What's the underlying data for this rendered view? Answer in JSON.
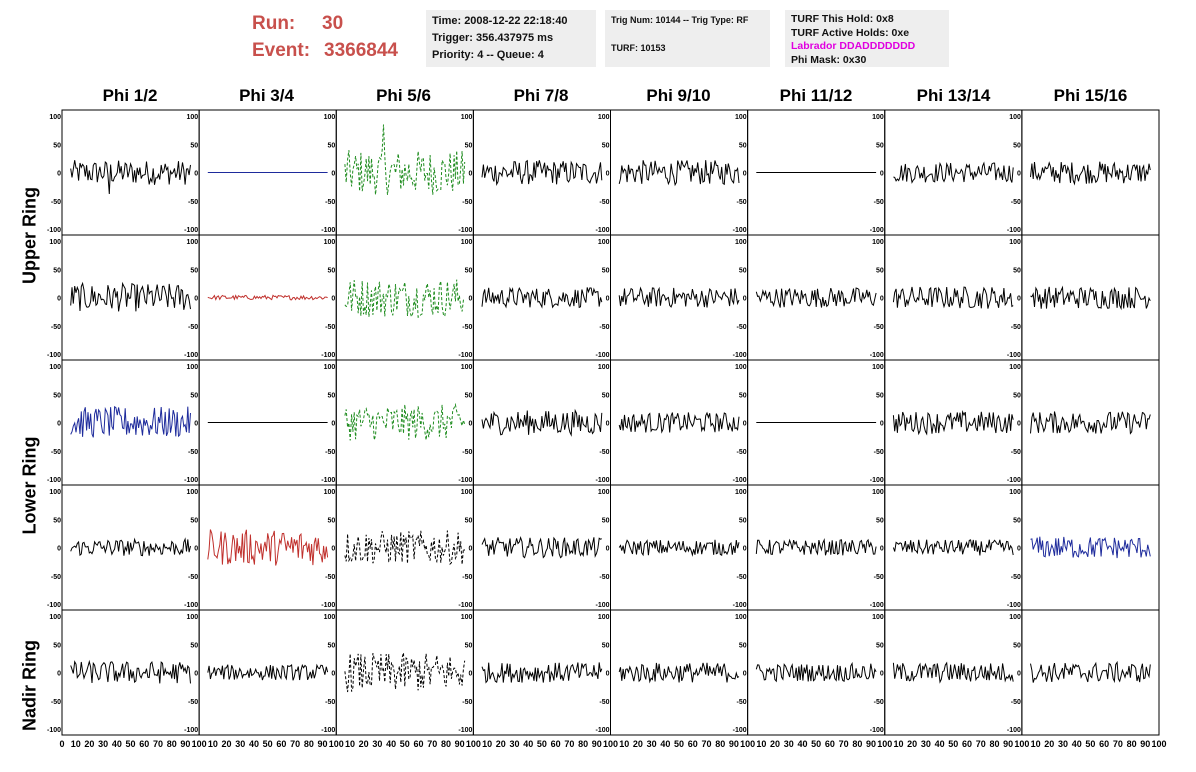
{
  "run": {
    "run_label": "Run:",
    "run_value": "30",
    "event_label": "Event:",
    "event_value": "3366844"
  },
  "info1": {
    "time": "Time: 2008-12-22 22:18:40",
    "trigger": "Trigger: 356.437975 ms",
    "priority": "Priority: 4 -- Queue: 4"
  },
  "info2": {
    "trig": "Trig Num: 10144 -- Trig Type: RF",
    "turf": "TURF: 10153"
  },
  "info3": {
    "hold": "TURF This Hold: 0x8",
    "active": "TURF Active Holds: 0xe",
    "labrador": "Labrador DDADDDDDDD",
    "phimask": "Phi Mask: 0x30"
  },
  "columns": [
    "Phi 1/2",
    "Phi 3/4",
    "Phi 5/6",
    "Phi 7/8",
    "Phi 9/10",
    "Phi 11/12",
    "Phi 13/14",
    "Phi 15/16"
  ],
  "row_labels": {
    "upper": "Upper Ring",
    "lower": "Lower Ring",
    "nadir": "Nadir Ring"
  },
  "colors": {
    "black": "#000000",
    "blue": "#1e2b9c",
    "red": "#c0302c",
    "green": "#1e8c1e",
    "title_red": "#c8504c",
    "magenta": "#e000e0"
  },
  "axis": {
    "ylim": [
      -100,
      100
    ],
    "y_ticks": [
      "-100",
      "-50",
      "0",
      "50",
      "100"
    ],
    "x_ticks_first": [
      "0",
      "10",
      "20",
      "30",
      "40",
      "50",
      "60",
      "70",
      "80",
      "90",
      "100"
    ],
    "x_ticks_rest": [
      "10",
      "20",
      "30",
      "40",
      "50",
      "60",
      "70",
      "80",
      "90",
      "100"
    ]
  },
  "chart_data": {
    "type": "line",
    "grid": false,
    "rows": 5,
    "cols": 8,
    "xlim": [
      0,
      100
    ],
    "ylim": [
      -100,
      100
    ],
    "panels": [
      {
        "r": 0,
        "c": 0,
        "color": "black",
        "style": "solid",
        "amp": 22,
        "spike": -38
      },
      {
        "r": 0,
        "c": 1,
        "color": "blue",
        "style": "solid",
        "amp": 0
      },
      {
        "r": 0,
        "c": 2,
        "color": "green",
        "style": "dashed",
        "amp": 40,
        "spike": 85
      },
      {
        "r": 0,
        "c": 3,
        "color": "black",
        "style": "solid",
        "amp": 22
      },
      {
        "r": 0,
        "c": 4,
        "color": "black",
        "style": "solid",
        "amp": 22
      },
      {
        "r": 0,
        "c": 5,
        "color": "black",
        "style": "solid",
        "amp": 0
      },
      {
        "r": 0,
        "c": 6,
        "color": "black",
        "style": "solid",
        "amp": 18
      },
      {
        "r": 0,
        "c": 7,
        "color": "black",
        "style": "solid",
        "amp": 20
      },
      {
        "r": 1,
        "c": 0,
        "color": "black",
        "style": "solid",
        "amp": 25
      },
      {
        "r": 1,
        "c": 1,
        "color": "red",
        "style": "solid",
        "amp": 4
      },
      {
        "r": 1,
        "c": 2,
        "color": "green",
        "style": "dashed",
        "amp": 35
      },
      {
        "r": 1,
        "c": 3,
        "color": "black",
        "style": "solid",
        "amp": 18
      },
      {
        "r": 1,
        "c": 4,
        "color": "black",
        "style": "solid",
        "amp": 18
      },
      {
        "r": 1,
        "c": 5,
        "color": "black",
        "style": "solid",
        "amp": 18
      },
      {
        "r": 1,
        "c": 6,
        "color": "black",
        "style": "solid",
        "amp": 20
      },
      {
        "r": 1,
        "c": 7,
        "color": "black",
        "style": "solid",
        "amp": 20
      },
      {
        "r": 2,
        "c": 0,
        "color": "blue",
        "style": "solid",
        "amp": 28
      },
      {
        "r": 2,
        "c": 1,
        "color": "black",
        "style": "solid",
        "amp": 0
      },
      {
        "r": 2,
        "c": 2,
        "color": "green",
        "style": "dashed",
        "amp": 32
      },
      {
        "r": 2,
        "c": 3,
        "color": "black",
        "style": "solid",
        "amp": 22
      },
      {
        "r": 2,
        "c": 4,
        "color": "black",
        "style": "solid",
        "amp": 18
      },
      {
        "r": 2,
        "c": 5,
        "color": "black",
        "style": "solid",
        "amp": 0
      },
      {
        "r": 2,
        "c": 6,
        "color": "black",
        "style": "solid",
        "amp": 20
      },
      {
        "r": 2,
        "c": 7,
        "color": "black",
        "style": "solid",
        "amp": 20
      },
      {
        "r": 3,
        "c": 0,
        "color": "black",
        "style": "solid",
        "amp": 15
      },
      {
        "r": 3,
        "c": 1,
        "color": "red",
        "style": "solid",
        "amp": 32
      },
      {
        "r": 3,
        "c": 2,
        "color": "black",
        "style": "dashed",
        "amp": 30
      },
      {
        "r": 3,
        "c": 3,
        "color": "black",
        "style": "solid",
        "amp": 18
      },
      {
        "r": 3,
        "c": 4,
        "color": "black",
        "style": "solid",
        "amp": 14
      },
      {
        "r": 3,
        "c": 5,
        "color": "black",
        "style": "solid",
        "amp": 14
      },
      {
        "r": 3,
        "c": 6,
        "color": "black",
        "style": "solid",
        "amp": 14
      },
      {
        "r": 3,
        "c": 7,
        "color": "blue",
        "style": "solid",
        "amp": 20
      },
      {
        "r": 4,
        "c": 0,
        "color": "black",
        "style": "solid",
        "amp": 20
      },
      {
        "r": 4,
        "c": 1,
        "color": "black",
        "style": "solid",
        "amp": 14
      },
      {
        "r": 4,
        "c": 2,
        "color": "black",
        "style": "dashed",
        "amp": 35
      },
      {
        "r": 4,
        "c": 3,
        "color": "black",
        "style": "solid",
        "amp": 18
      },
      {
        "r": 4,
        "c": 4,
        "color": "black",
        "style": "solid",
        "amp": 18
      },
      {
        "r": 4,
        "c": 5,
        "color": "black",
        "style": "solid",
        "amp": 16
      },
      {
        "r": 4,
        "c": 6,
        "color": "black",
        "style": "solid",
        "amp": 18
      },
      {
        "r": 4,
        "c": 7,
        "color": "black",
        "style": "solid",
        "amp": 18
      }
    ]
  }
}
